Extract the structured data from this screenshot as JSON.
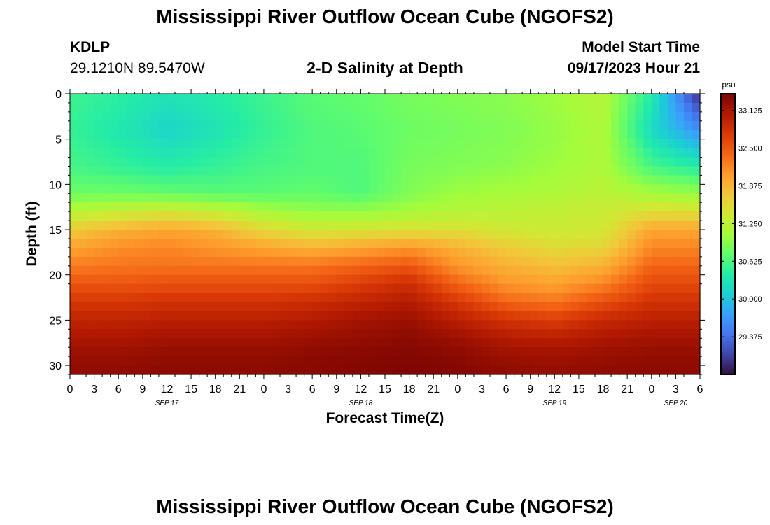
{
  "header": {
    "title": "Mississippi River Outflow Ocean Cube (NGOFS2)",
    "station": "KDLP",
    "coordinates": "29.1210N  89.5470W",
    "subtitle": "2-D Salinity at Depth",
    "model_start_label": "Model Start Time",
    "model_start_value": "09/17/2023 Hour 21"
  },
  "footer": {
    "title": "Mississippi River Outflow Ocean Cube (NGOFS2)"
  },
  "chart_data": {
    "type": "heatmap",
    "title": "2-D Salinity at Depth",
    "xlabel": "Forecast Time(Z)",
    "ylabel": "Depth (ft)",
    "x_tick_labels": [
      "0",
      "3",
      "6",
      "9",
      "12",
      "15",
      "18",
      "21",
      "0",
      "3",
      "6",
      "9",
      "12",
      "15",
      "18",
      "21",
      "0",
      "3",
      "6",
      "9",
      "12",
      "15",
      "18",
      "21",
      "0",
      "3",
      "6"
    ],
    "x_day_labels": [
      {
        "label": "SEP 17",
        "hour": 12
      },
      {
        "label": "SEP 18",
        "hour": 36
      },
      {
        "label": "SEP 19",
        "hour": 60
      },
      {
        "label": "SEP 20",
        "hour": 75
      }
    ],
    "x_range_hours": [
      0,
      78
    ],
    "y_tick_labels": [
      "0",
      "5",
      "10",
      "15",
      "20",
      "25",
      "30"
    ],
    "y_range_ft": [
      0,
      31
    ],
    "colorbar": {
      "unit": "psu",
      "ticks": [
        "33.125",
        "32.500",
        "31.875",
        "31.250",
        "30.625",
        "30.000",
        "29.375"
      ],
      "range": [
        28.75,
        33.4
      ],
      "colors": [
        "#30123b",
        "#4145ab",
        "#4675ed",
        "#39a2fc",
        "#1bcfd4",
        "#24eca6",
        "#61fc6c",
        "#a4fc3b",
        "#d1e834",
        "#f3c63a",
        "#fe9b2d",
        "#f36315",
        "#d93806",
        "#b11901",
        "#7a0402"
      ]
    },
    "salinity_grid": {
      "x_hours": [
        0,
        6,
        12,
        18,
        24,
        30,
        36,
        42,
        48,
        54,
        60,
        66,
        72,
        78
      ],
      "depths_ft": [
        0,
        4,
        8,
        11,
        13,
        15,
        17,
        19,
        21,
        23,
        25,
        27,
        29,
        31
      ],
      "values": [
        [
          30.55,
          30.45,
          30.3,
          30.4,
          30.55,
          30.7,
          30.75,
          30.85,
          30.9,
          30.95,
          31.05,
          31.2,
          30.4,
          28.9
        ],
        [
          30.5,
          30.35,
          30.15,
          30.3,
          30.5,
          30.65,
          30.7,
          30.8,
          30.85,
          30.9,
          31.0,
          31.15,
          30.2,
          29.6
        ],
        [
          30.6,
          30.5,
          30.4,
          30.5,
          30.6,
          30.65,
          30.65,
          30.85,
          30.9,
          30.95,
          31.05,
          31.15,
          30.6,
          30.4
        ],
        [
          30.8,
          30.8,
          30.75,
          30.7,
          30.7,
          30.75,
          30.65,
          30.9,
          31.05,
          31.1,
          31.15,
          31.25,
          31.1,
          31.0
        ],
        [
          31.2,
          31.3,
          31.4,
          31.3,
          31.1,
          31.0,
          31.0,
          31.1,
          31.2,
          31.25,
          31.3,
          31.35,
          31.5,
          31.5
        ],
        [
          31.7,
          31.9,
          32.0,
          31.9,
          31.6,
          31.4,
          31.45,
          31.5,
          31.5,
          31.4,
          31.35,
          31.4,
          32.0,
          32.0
        ],
        [
          32.0,
          32.15,
          32.2,
          32.1,
          32.0,
          31.9,
          32.0,
          32.1,
          31.9,
          31.7,
          31.55,
          31.6,
          32.2,
          32.2
        ],
        [
          32.25,
          32.3,
          32.3,
          32.3,
          32.3,
          32.3,
          32.4,
          32.5,
          32.1,
          31.9,
          31.8,
          31.9,
          32.4,
          32.4
        ],
        [
          32.5,
          32.5,
          32.55,
          32.55,
          32.55,
          32.55,
          32.7,
          32.85,
          32.4,
          32.1,
          32.0,
          32.2,
          32.6,
          32.6
        ],
        [
          32.75,
          32.75,
          32.8,
          32.8,
          32.8,
          32.85,
          32.95,
          33.05,
          32.75,
          32.4,
          32.3,
          32.55,
          32.8,
          32.8
        ],
        [
          32.95,
          32.95,
          33.0,
          33.0,
          33.0,
          33.05,
          33.15,
          33.2,
          33.0,
          32.8,
          32.7,
          32.9,
          33.0,
          33.0
        ],
        [
          33.1,
          33.1,
          33.15,
          33.15,
          33.15,
          33.2,
          33.25,
          33.3,
          33.2,
          33.05,
          33.0,
          33.1,
          33.15,
          33.15
        ],
        [
          33.22,
          33.22,
          33.25,
          33.25,
          33.25,
          33.3,
          33.32,
          33.35,
          33.3,
          33.2,
          33.18,
          33.22,
          33.25,
          33.25
        ],
        [
          33.28,
          33.28,
          33.3,
          33.3,
          33.3,
          33.32,
          33.35,
          33.38,
          33.35,
          33.28,
          33.25,
          33.28,
          33.3,
          33.3
        ]
      ]
    }
  }
}
